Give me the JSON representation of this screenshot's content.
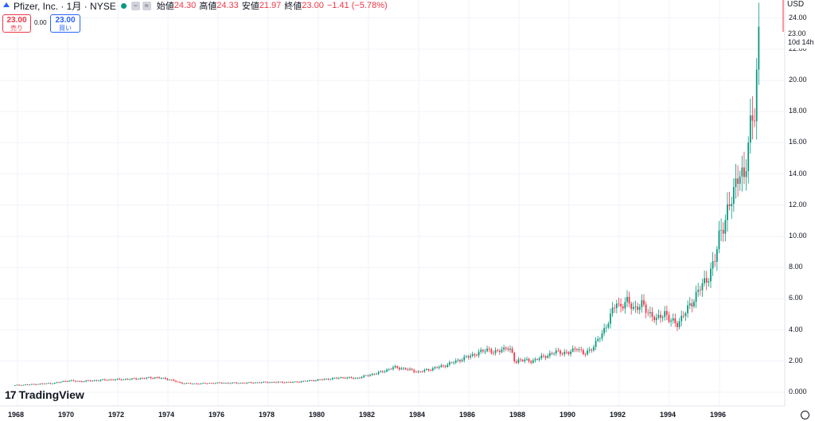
{
  "header": {
    "title": "Pfizer, Inc. · 1月 · NYSE",
    "ohlc": [
      {
        "label": "始値",
        "value": "24.30"
      },
      {
        "label": "高値",
        "value": "24.33"
      },
      {
        "label": "安値",
        "value": "21.97"
      },
      {
        "label": "終値",
        "value": "23.00"
      }
    ],
    "change": "−1.41 (−5.78%)"
  },
  "trade": {
    "sell_price": "23.00",
    "sell_label": "売り",
    "spread": "0.00",
    "buy_price": "23.00",
    "buy_label": "買い"
  },
  "axis": {
    "currency": "USD",
    "y_ticks": [
      "24.00",
      "22.00",
      "20.00",
      "18.00",
      "16.00",
      "14.00",
      "12.00",
      "10.00",
      "8.00",
      "6.00",
      "4.00",
      "2.00",
      "0.000"
    ],
    "x_ticks": [
      "1968",
      "1970",
      "1972",
      "1974",
      "1976",
      "1978",
      "1980",
      "1982",
      "1984",
      "1986",
      "1988",
      "1990",
      "1992",
      "1994",
      "1996"
    ]
  },
  "price_tag": {
    "value": "23.00",
    "countdown": "10d 14h"
  },
  "brand": {
    "name": "TradingView"
  },
  "colors": {
    "up": "#089981",
    "down": "#f23645",
    "grid": "#f0f3fa"
  },
  "chart_data": {
    "type": "candlestick",
    "interval": "1 month",
    "ylim": [
      0,
      24
    ],
    "x": [
      1967.9,
      1968.5,
      1969.5,
      1970.0,
      1970.5,
      1971.5,
      1972.5,
      1973.0,
      1973.5,
      1974.0,
      1974.5,
      1975.0,
      1976.0,
      1977.0,
      1978.0,
      1979.0,
      1980.0,
      1981.0,
      1981.5,
      1982.0,
      1982.5,
      1983.0,
      1983.5,
      1984.0,
      1984.5,
      1985.0,
      1985.5,
      1986.0,
      1986.5,
      1986.8,
      1987.0,
      1987.5,
      1987.7,
      1987.85,
      1988.0,
      1988.5,
      1989.0,
      1989.5,
      1990.0,
      1990.3,
      1990.6,
      1991.0,
      1991.3,
      1991.6,
      1991.9,
      1992.0,
      1992.3,
      1992.6,
      1992.9,
      1993.2,
      1993.5,
      1993.8,
      1994.0,
      1994.3,
      1994.6,
      1994.9,
      1995.2,
      1995.5,
      1995.8,
      1996.0,
      1996.2,
      1996.4,
      1996.6,
      1996.8,
      1997.0,
      1997.2,
      1997.4,
      1997.6
    ],
    "close": [
      0.45,
      0.5,
      0.6,
      0.75,
      0.7,
      0.8,
      0.85,
      0.9,
      0.95,
      0.85,
      0.6,
      0.55,
      0.6,
      0.6,
      0.65,
      0.65,
      0.8,
      0.95,
      0.9,
      1.1,
      1.3,
      1.6,
      1.5,
      1.3,
      1.5,
      1.7,
      2.0,
      2.3,
      2.6,
      2.8,
      2.5,
      2.9,
      2.6,
      1.9,
      2.1,
      2.0,
      2.3,
      2.6,
      2.5,
      2.9,
      2.4,
      3.0,
      3.7,
      4.7,
      5.8,
      5.5,
      5.8,
      5.4,
      5.6,
      5.1,
      4.6,
      5.2,
      4.6,
      4.4,
      5.0,
      5.8,
      6.6,
      7.3,
      8.3,
      10.2,
      11.0,
      11.8,
      13.2,
      14.4,
      13.2,
      17.2,
      18.2,
      23.0
    ]
  }
}
